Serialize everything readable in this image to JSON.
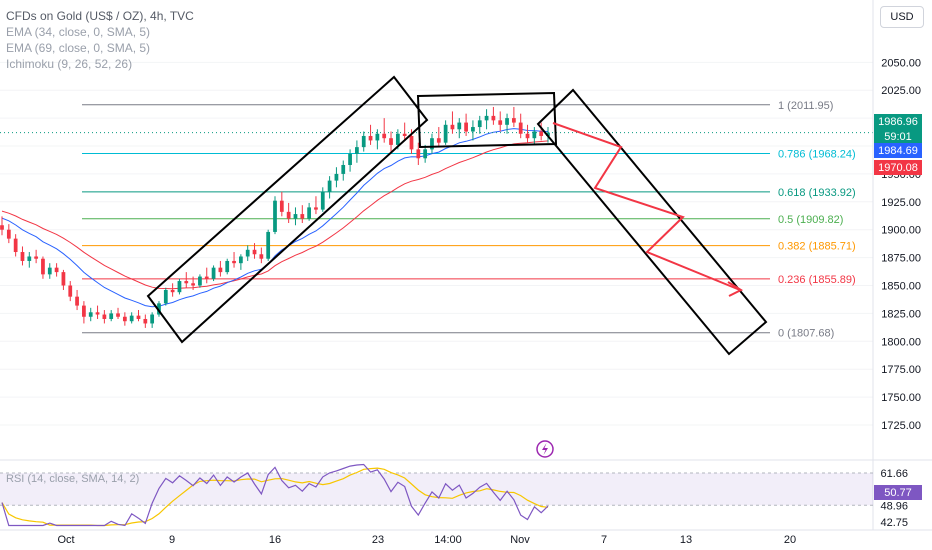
{
  "legend": {
    "title": "CFDs on Gold (US$ / OZ), 4h, TVC",
    "ema34": "EMA (34, close, 0, SMA, 5)",
    "ema69": "EMA (69, close, 0, SMA, 5)",
    "ichimoku": "Ichimoku (9, 26, 52, 26)"
  },
  "currency_button": "USD",
  "chart_data": {
    "type": "candlestick",
    "symbol": "CFDs on Gold (US$ / OZ), 4h, TVC",
    "ylim": [
      1725,
      2070
    ],
    "y_ticks": [
      "2050.00",
      "2025.00",
      "2000.00",
      "1975.00",
      "1950.00",
      "1925.00",
      "1900.00",
      "1875.00",
      "1850.00",
      "1825.00",
      "1800.00",
      "1775.00",
      "1750.00",
      "1725.00"
    ],
    "x_ticks": [
      "Oct",
      "9",
      "16",
      "23",
      "14:00",
      "Nov",
      "7",
      "13",
      "20"
    ],
    "price_labels": {
      "last": "1986.96",
      "countdown": "59:01",
      "ema34": "1984.69",
      "ema69": "1970.08"
    },
    "fib_levels": [
      {
        "label": "1 (2011.95)",
        "value": 2011.95,
        "color": "#787b86"
      },
      {
        "label": "0.786 (1968.24)",
        "value": 1968.24,
        "color": "#00bcd4"
      },
      {
        "label": "0.618 (1933.92)",
        "value": 1933.92,
        "color": "#089981"
      },
      {
        "label": "0.5 (1909.82)",
        "value": 1909.82,
        "color": "#4caf50"
      },
      {
        "label": "0.382 (1885.71)",
        "value": 1885.71,
        "color": "#ff9800"
      },
      {
        "label": "0.236 (1855.89)",
        "value": 1855.89,
        "color": "#f23645"
      },
      {
        "label": "0 (1807.68)",
        "value": 1807.68,
        "color": "#787b86"
      }
    ],
    "candles": [
      [
        1904,
        1912,
        1895,
        1900
      ],
      [
        1900,
        1905,
        1888,
        1892
      ],
      [
        1892,
        1896,
        1876,
        1880
      ],
      [
        1880,
        1885,
        1868,
        1872
      ],
      [
        1872,
        1880,
        1866,
        1876
      ],
      [
        1876,
        1882,
        1870,
        1874
      ],
      [
        1874,
        1876,
        1856,
        1860
      ],
      [
        1860,
        1870,
        1856,
        1866
      ],
      [
        1866,
        1870,
        1858,
        1862
      ],
      [
        1862,
        1864,
        1846,
        1850
      ],
      [
        1850,
        1854,
        1836,
        1840
      ],
      [
        1840,
        1846,
        1828,
        1832
      ],
      [
        1832,
        1836,
        1816,
        1822
      ],
      [
        1822,
        1830,
        1818,
        1826
      ],
      [
        1826,
        1832,
        1820,
        1824
      ],
      [
        1824,
        1828,
        1816,
        1820
      ],
      [
        1820,
        1828,
        1818,
        1825
      ],
      [
        1825,
        1830,
        1820,
        1822
      ],
      [
        1822,
        1826,
        1814,
        1818
      ],
      [
        1818,
        1826,
        1816,
        1823
      ],
      [
        1823,
        1828,
        1818,
        1820
      ],
      [
        1820,
        1824,
        1812,
        1816
      ],
      [
        1816,
        1826,
        1812,
        1824
      ],
      [
        1824,
        1836,
        1822,
        1834
      ],
      [
        1834,
        1848,
        1832,
        1846
      ],
      [
        1846,
        1852,
        1840,
        1844
      ],
      [
        1844,
        1856,
        1842,
        1854
      ],
      [
        1854,
        1862,
        1848,
        1852
      ],
      [
        1852,
        1858,
        1846,
        1850
      ],
      [
        1850,
        1860,
        1848,
        1858
      ],
      [
        1858,
        1866,
        1852,
        1856
      ],
      [
        1856,
        1868,
        1854,
        1866
      ],
      [
        1866,
        1872,
        1858,
        1862
      ],
      [
        1862,
        1874,
        1860,
        1872
      ],
      [
        1872,
        1880,
        1866,
        1870
      ],
      [
        1870,
        1878,
        1864,
        1876
      ],
      [
        1876,
        1886,
        1872,
        1882
      ],
      [
        1882,
        1888,
        1874,
        1878
      ],
      [
        1878,
        1884,
        1870,
        1874
      ],
      [
        1874,
        1900,
        1872,
        1898
      ],
      [
        1898,
        1930,
        1896,
        1926
      ],
      [
        1926,
        1934,
        1912,
        1916
      ],
      [
        1916,
        1924,
        1906,
        1910
      ],
      [
        1910,
        1920,
        1904,
        1914
      ],
      [
        1914,
        1922,
        1906,
        1910
      ],
      [
        1910,
        1924,
        1908,
        1920
      ],
      [
        1920,
        1930,
        1914,
        1918
      ],
      [
        1918,
        1938,
        1916,
        1934
      ],
      [
        1934,
        1948,
        1928,
        1944
      ],
      [
        1944,
        1956,
        1938,
        1950
      ],
      [
        1950,
        1962,
        1944,
        1958
      ],
      [
        1958,
        1972,
        1952,
        1968
      ],
      [
        1968,
        1980,
        1960,
        1974
      ],
      [
        1974,
        1988,
        1970,
        1984
      ],
      [
        1984,
        1994,
        1976,
        1980
      ],
      [
        1980,
        1990,
        1972,
        1986
      ],
      [
        1986,
        2000,
        1978,
        1982
      ],
      [
        1982,
        1988,
        1970,
        1976
      ],
      [
        1976,
        1990,
        1972,
        1986
      ],
      [
        1986,
        1996,
        1980,
        1984
      ],
      [
        1984,
        1990,
        1968,
        1972
      ],
      [
        1972,
        1978,
        1958,
        1964
      ],
      [
        1964,
        1976,
        1960,
        1972
      ],
      [
        1972,
        1986,
        1968,
        1982
      ],
      [
        1982,
        1992,
        1974,
        1978
      ],
      [
        1978,
        1998,
        1976,
        1994
      ],
      [
        1994,
        2006,
        1986,
        1990
      ],
      [
        1990,
        2000,
        1982,
        1996
      ],
      [
        1996,
        2004,
        1984,
        1988
      ],
      [
        1988,
        1998,
        1980,
        1992
      ],
      [
        1992,
        2002,
        1986,
        1998
      ],
      [
        1998,
        2008,
        1990,
        2002
      ],
      [
        2002,
        2010,
        1994,
        1998
      ],
      [
        1998,
        2006,
        1988,
        1994
      ],
      [
        1994,
        2004,
        1986,
        2000
      ],
      [
        2000,
        2010,
        1992,
        1996
      ],
      [
        1996,
        2004,
        1982,
        1986
      ],
      [
        1986,
        1994,
        1978,
        1982
      ],
      [
        1982,
        1992,
        1976,
        1988
      ],
      [
        1988,
        1996,
        1980,
        1984
      ],
      [
        1984,
        1992,
        1978,
        1987
      ]
    ],
    "rsi": {
      "label": "RSI (14, close, SMA, 14, 2)",
      "ylim": [
        40,
        66
      ],
      "upper_band": 61.66,
      "lower_band": 48.96,
      "value_label": "50.77",
      "y_ticks": [
        "61.66",
        "48.96",
        "42.75"
      ]
    }
  }
}
